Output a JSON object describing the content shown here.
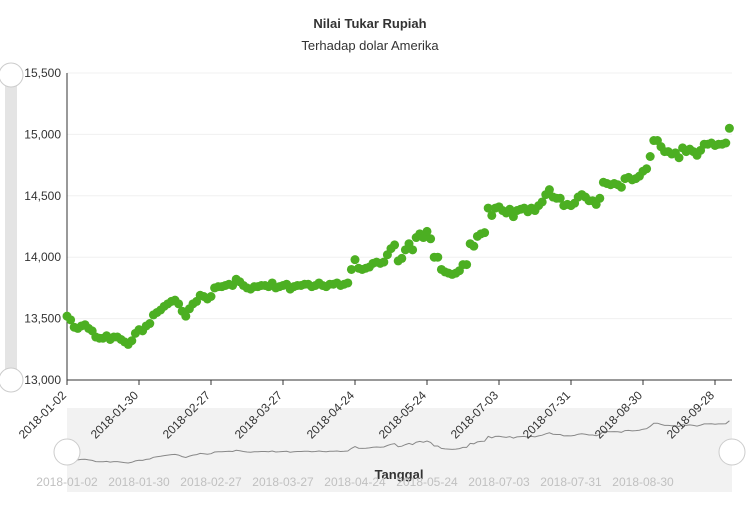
{
  "chart_data": {
    "type": "scatter",
    "title": "Nilai Tukar Rupiah",
    "subtitle": "Terhadap dolar Amerika",
    "x_label": "Tanggal",
    "color": "#4caf22",
    "grid": true,
    "ylim": [
      13000,
      15500
    ],
    "yticks": [
      {
        "value": 13000,
        "label": "13,000"
      },
      {
        "value": 13500,
        "label": "13,500"
      },
      {
        "value": 14000,
        "label": "14,000"
      },
      {
        "value": 14500,
        "label": "14,500"
      },
      {
        "value": 15000,
        "label": "15,000"
      },
      {
        "value": 15500,
        "label": "15,500"
      }
    ],
    "categories": [
      "2018-01-02",
      null,
      null,
      null,
      null,
      null,
      null,
      null,
      null,
      null,
      null,
      null,
      null,
      null,
      null,
      null,
      null,
      null,
      null,
      null,
      "2018-01-30",
      null,
      null,
      null,
      null,
      null,
      null,
      null,
      null,
      null,
      null,
      null,
      null,
      null,
      null,
      null,
      null,
      null,
      null,
      null,
      "2018-02-27",
      null,
      null,
      null,
      null,
      null,
      null,
      null,
      null,
      null,
      null,
      null,
      null,
      null,
      null,
      null,
      null,
      null,
      null,
      null,
      "2018-03-27",
      null,
      null,
      null,
      null,
      null,
      null,
      null,
      null,
      null,
      null,
      null,
      null,
      null,
      null,
      null,
      null,
      null,
      null,
      null,
      "2018-04-24",
      null,
      null,
      null,
      null,
      null,
      null,
      null,
      null,
      null,
      null,
      null,
      null,
      null,
      null,
      null,
      null,
      null,
      null,
      null,
      "2018-05-24",
      null,
      null,
      null,
      null,
      null,
      null,
      null,
      null,
      null,
      null,
      null,
      null,
      null,
      null,
      null,
      null,
      null,
      null,
      null,
      "2018-07-03",
      null,
      null,
      null,
      null,
      null,
      null,
      null,
      null,
      null,
      null,
      null,
      null,
      null,
      null,
      null,
      null,
      null,
      null,
      null,
      "2018-07-31",
      null,
      null,
      null,
      null,
      null,
      null,
      null,
      null,
      null,
      null,
      null,
      null,
      null,
      null,
      null,
      null,
      null,
      null,
      null,
      "2018-08-30",
      null,
      null,
      null,
      null,
      null,
      null,
      null,
      null,
      null,
      null,
      null,
      null,
      null,
      null,
      null,
      null,
      null,
      null,
      null,
      "2018-09-28",
      null,
      null,
      null,
      null
    ],
    "values": [
      13520,
      13490,
      13430,
      13420,
      13440,
      13450,
      13420,
      13400,
      13350,
      13340,
      13340,
      13360,
      13330,
      13350,
      13350,
      13330,
      13310,
      13290,
      13320,
      13380,
      13410,
      13400,
      13440,
      13460,
      13530,
      13550,
      13570,
      13600,
      13620,
      13640,
      13650,
      13620,
      13560,
      13520,
      13580,
      13620,
      13640,
      13690,
      13680,
      13660,
      13680,
      13750,
      13760,
      13760,
      13770,
      13780,
      13770,
      13820,
      13800,
      13770,
      13750,
      13740,
      13760,
      13760,
      13770,
      13770,
      13760,
      13790,
      13750,
      13760,
      13770,
      13780,
      13740,
      13760,
      13770,
      13770,
      13780,
      13780,
      13760,
      13770,
      13790,
      13770,
      13760,
      13780,
      13780,
      13790,
      13770,
      13780,
      13790,
      13900,
      13980,
      13910,
      13900,
      13910,
      13920,
      13950,
      13960,
      13950,
      13960,
      14020,
      14070,
      14100,
      13970,
      13990,
      14060,
      14110,
      14060,
      14160,
      14190,
      14160,
      14210,
      14150,
      14000,
      14000,
      13900,
      13880,
      13870,
      13860,
      13870,
      13890,
      13940,
      13940,
      14110,
      14090,
      14170,
      14190,
      14200,
      14400,
      14340,
      14400,
      14410,
      14380,
      14360,
      14390,
      14330,
      14380,
      14390,
      14400,
      14370,
      14400,
      14380,
      14420,
      14450,
      14510,
      14550,
      14490,
      14480,
      14480,
      14420,
      14430,
      14420,
      14440,
      14490,
      14510,
      14490,
      14460,
      14460,
      14430,
      14480,
      14610,
      14600,
      14590,
      14600,
      14590,
      14570,
      14640,
      14650,
      14630,
      14640,
      14660,
      14700,
      14720,
      14820,
      14950,
      14950,
      14900,
      14860,
      14860,
      14840,
      14850,
      14810,
      14890,
      14860,
      14880,
      14860,
      14830,
      14870,
      14920,
      14920,
      14930,
      14910,
      14920,
      14920,
      14930,
      15050
    ]
  }
}
